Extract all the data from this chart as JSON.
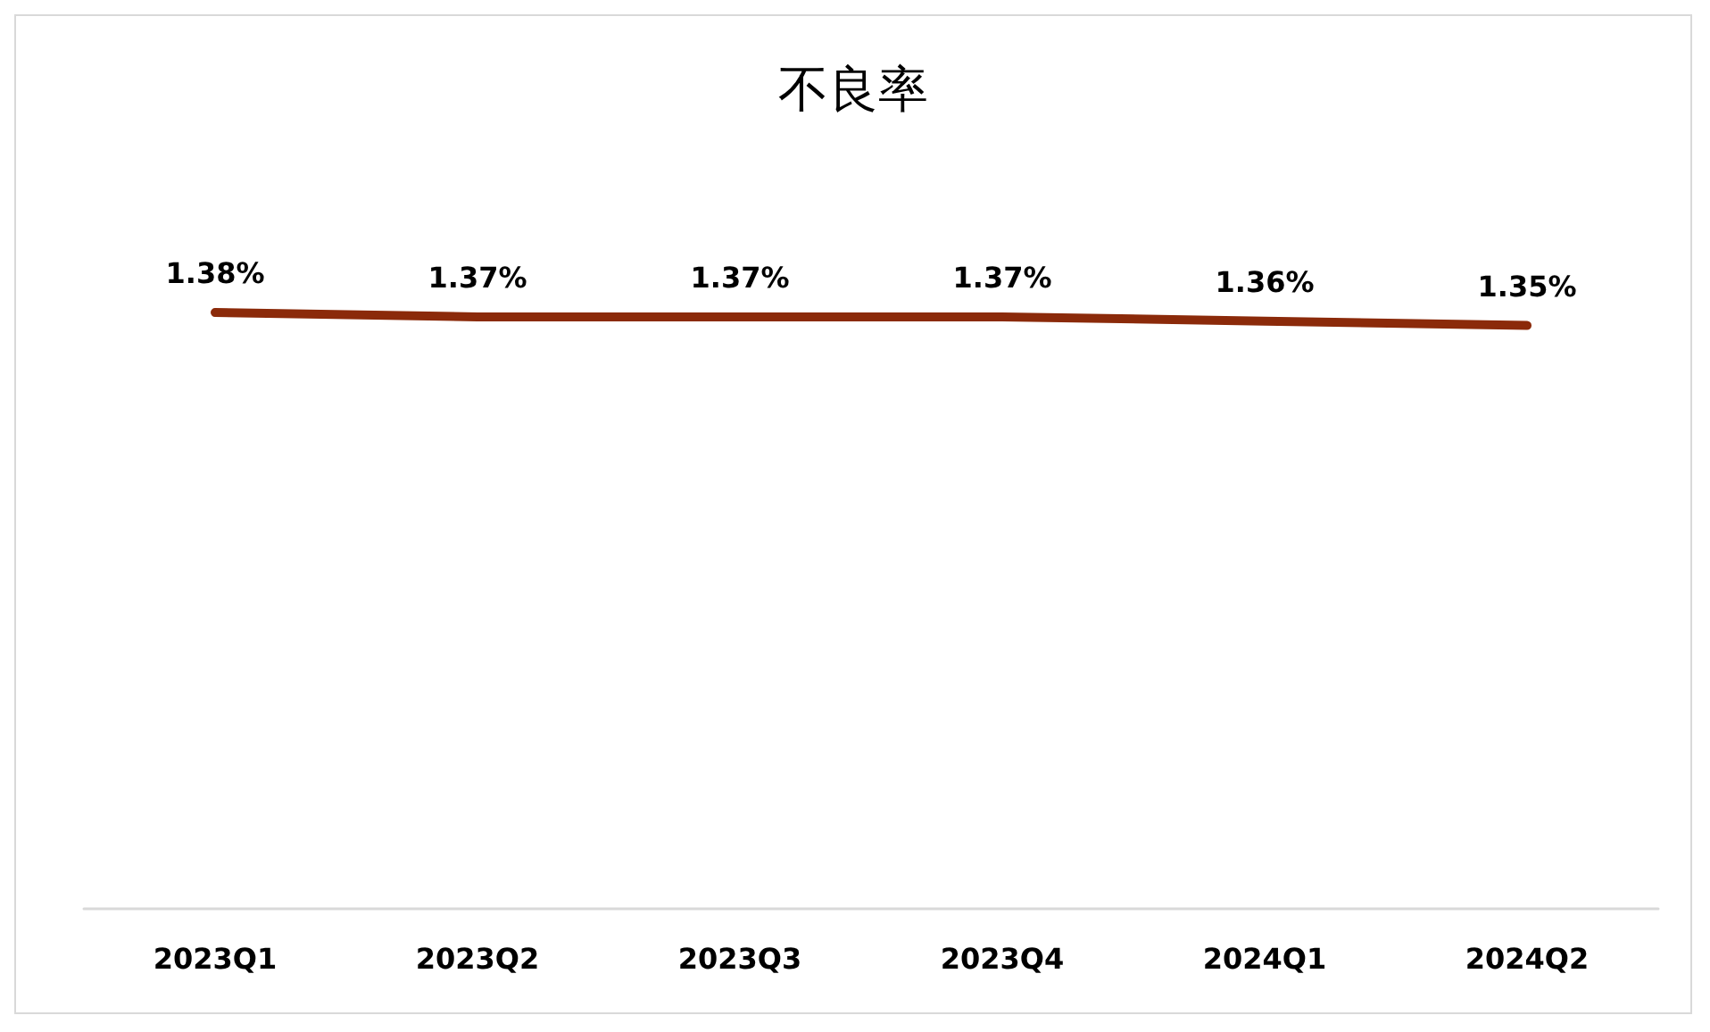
{
  "chart_data": {
    "type": "line",
    "title": "不良率",
    "categories": [
      "2023Q1",
      "2023Q2",
      "2023Q3",
      "2023Q4",
      "2024Q1",
      "2024Q2"
    ],
    "series": [
      {
        "color": "#8b2a0a",
        "values": [
          1.38,
          1.37,
          1.37,
          1.37,
          1.36,
          1.35
        ],
        "value_labels": [
          "1.38%",
          "1.37%",
          "1.37%",
          "1.37%",
          "1.36%",
          "1.35%"
        ]
      }
    ],
    "marker": "none",
    "line_style": "solid"
  }
}
